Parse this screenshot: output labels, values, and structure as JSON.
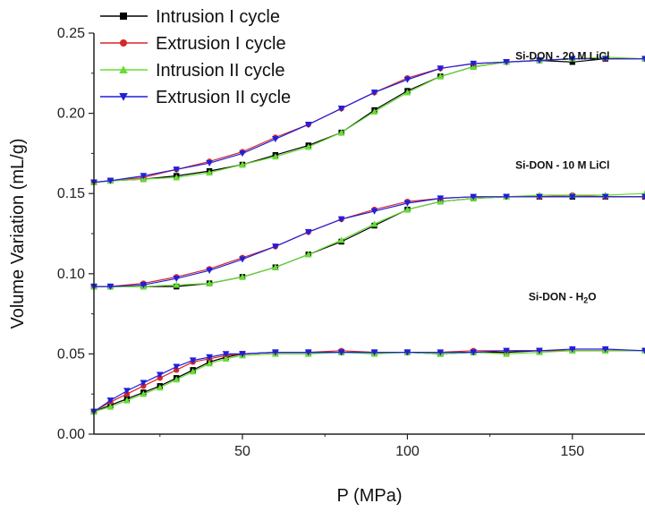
{
  "chart_data": {
    "type": "line",
    "xlabel": "P (MPa)",
    "ylabel": "Volume Variation (mL/g)",
    "xlim": [
      5,
      172
    ],
    "ylim": [
      0,
      0.25
    ],
    "xticks": [
      "50",
      "100",
      "150"
    ],
    "yticks": [
      "0.00",
      "0.05",
      "0.10",
      "0.15",
      "0.20",
      "0.25"
    ],
    "legend_position": "top-left",
    "legend": [
      {
        "name": "Intrusion I cycle",
        "color": "#000000",
        "marker": "square"
      },
      {
        "name": "Extrusion I cycle",
        "color": "#d62728",
        "marker": "circle"
      },
      {
        "name": "Intrusion II cycle",
        "color": "#66dd33",
        "marker": "triangle-up"
      },
      {
        "name": "Extrusion II cycle",
        "color": "#1f1fdd",
        "marker": "triangle-down"
      }
    ],
    "annotations": [
      {
        "text_before": "Si-DON - 20 M LiCl",
        "subscript": "",
        "text_after": "",
        "x": 147,
        "y": 0.2335
      },
      {
        "text_before": "Si-DON - 10 M LiCl",
        "subscript": "",
        "text_after": "",
        "x": 147,
        "y": 0.1655
      },
      {
        "text_before": "Si-DON - H",
        "subscript": "2",
        "text_after": "O",
        "x": 147,
        "y": 0.0835
      }
    ],
    "groups": [
      {
        "label": "Si-DON - 20 M LiCl",
        "series": [
          {
            "name": "Intrusion I cycle",
            "x": [
              5,
              10,
              20,
              30,
              40,
              50,
              60,
              70,
              80,
              90,
              100,
              110,
              120,
              130,
              140,
              150,
              160,
              172
            ],
            "y": [
              0.157,
              0.158,
              0.159,
              0.161,
              0.164,
              0.168,
              0.174,
              0.18,
              0.188,
              0.202,
              0.214,
              0.223,
              0.229,
              0.232,
              0.233,
              0.232,
              0.234,
              0.234
            ]
          },
          {
            "name": "Extrusion I cycle",
            "x": [
              5,
              10,
              20,
              30,
              40,
              50,
              60,
              70,
              80,
              90,
              100,
              110,
              120,
              130,
              140,
              150,
              160,
              172
            ],
            "y": [
              0.157,
              0.158,
              0.16,
              0.165,
              0.17,
              0.176,
              0.185,
              0.193,
              0.203,
              0.213,
              0.222,
              0.228,
              0.231,
              0.232,
              0.233,
              0.234,
              0.234,
              0.234
            ]
          },
          {
            "name": "Intrusion II cycle",
            "x": [
              5,
              10,
              20,
              30,
              40,
              50,
              60,
              70,
              80,
              90,
              100,
              110,
              120,
              130,
              140,
              150,
              160,
              172
            ],
            "y": [
              0.157,
              0.158,
              0.159,
              0.16,
              0.163,
              0.168,
              0.173,
              0.179,
              0.188,
              0.201,
              0.213,
              0.223,
              0.229,
              0.232,
              0.233,
              0.234,
              0.235,
              0.234
            ]
          },
          {
            "name": "Extrusion II cycle",
            "x": [
              5,
              10,
              20,
              30,
              40,
              50,
              60,
              70,
              80,
              90,
              100,
              110,
              120,
              130,
              140,
              150,
              160,
              172
            ],
            "y": [
              0.157,
              0.158,
              0.161,
              0.165,
              0.169,
              0.175,
              0.184,
              0.193,
              0.203,
              0.213,
              0.221,
              0.228,
              0.231,
              0.232,
              0.233,
              0.234,
              0.234,
              0.234
            ]
          }
        ]
      },
      {
        "label": "Si-DON - 10 M LiCl",
        "series": [
          {
            "name": "Intrusion I cycle",
            "x": [
              5,
              10,
              20,
              30,
              40,
              50,
              60,
              70,
              80,
              90,
              100,
              110,
              120,
              130,
              140,
              150,
              160,
              172
            ],
            "y": [
              0.092,
              0.092,
              0.092,
              0.092,
              0.094,
              0.098,
              0.104,
              0.112,
              0.12,
              0.13,
              0.14,
              0.145,
              0.147,
              0.148,
              0.148,
              0.148,
              0.148,
              0.148
            ]
          },
          {
            "name": "Extrusion I cycle",
            "x": [
              5,
              10,
              20,
              30,
              40,
              50,
              60,
              70,
              80,
              90,
              100,
              110,
              120,
              130,
              140,
              150,
              160,
              172
            ],
            "y": [
              0.092,
              0.092,
              0.094,
              0.098,
              0.103,
              0.11,
              0.117,
              0.126,
              0.134,
              0.14,
              0.145,
              0.147,
              0.148,
              0.148,
              0.148,
              0.149,
              0.148,
              0.148
            ]
          },
          {
            "name": "Intrusion II cycle",
            "x": [
              5,
              10,
              20,
              30,
              40,
              50,
              60,
              70,
              80,
              90,
              100,
              110,
              120,
              130,
              140,
              150,
              160,
              172
            ],
            "y": [
              0.092,
              0.092,
              0.092,
              0.093,
              0.094,
              0.098,
              0.104,
              0.112,
              0.121,
              0.131,
              0.14,
              0.145,
              0.147,
              0.148,
              0.149,
              0.149,
              0.149,
              0.15
            ]
          },
          {
            "name": "Extrusion II cycle",
            "x": [
              5,
              10,
              20,
              30,
              40,
              50,
              60,
              70,
              80,
              90,
              100,
              110,
              120,
              130,
              140,
              150,
              160,
              172
            ],
            "y": [
              0.092,
              0.092,
              0.093,
              0.097,
              0.102,
              0.109,
              0.117,
              0.126,
              0.134,
              0.139,
              0.144,
              0.147,
              0.148,
              0.148,
              0.148,
              0.148,
              0.148,
              0.148
            ]
          }
        ]
      },
      {
        "label": "Si-DON - H2O",
        "series": [
          {
            "name": "Intrusion I cycle",
            "x": [
              5,
              10,
              15,
              20,
              25,
              30,
              35,
              40,
              45,
              50,
              60,
              70,
              80,
              90,
              100,
              110,
              120,
              130,
              140,
              150,
              160,
              172
            ],
            "y": [
              0.014,
              0.018,
              0.022,
              0.026,
              0.03,
              0.035,
              0.04,
              0.045,
              0.048,
              0.05,
              0.051,
              0.051,
              0.051,
              0.051,
              0.051,
              0.05,
              0.051,
              0.051,
              0.052,
              0.052,
              0.052,
              0.052
            ]
          },
          {
            "name": "Extrusion I cycle",
            "x": [
              5,
              10,
              15,
              20,
              25,
              30,
              35,
              40,
              45,
              50,
              60,
              70,
              80,
              90,
              100,
              110,
              120,
              130,
              140,
              150,
              160,
              172
            ],
            "y": [
              0.014,
              0.02,
              0.025,
              0.03,
              0.035,
              0.04,
              0.045,
              0.047,
              0.049,
              0.05,
              0.051,
              0.051,
              0.052,
              0.051,
              0.051,
              0.051,
              0.052,
              0.052,
              0.052,
              0.052,
              0.052,
              0.052
            ]
          },
          {
            "name": "Intrusion II cycle",
            "x": [
              5,
              10,
              15,
              20,
              25,
              30,
              35,
              40,
              45,
              50,
              60,
              70,
              80,
              90,
              100,
              110,
              120,
              130,
              140,
              150,
              160,
              172
            ],
            "y": [
              0.014,
              0.017,
              0.021,
              0.025,
              0.029,
              0.034,
              0.039,
              0.044,
              0.047,
              0.049,
              0.05,
              0.05,
              0.051,
              0.05,
              0.051,
              0.05,
              0.051,
              0.05,
              0.051,
              0.052,
              0.052,
              0.052
            ]
          },
          {
            "name": "Extrusion II cycle",
            "x": [
              5,
              10,
              15,
              20,
              25,
              30,
              35,
              40,
              45,
              50,
              60,
              70,
              80,
              90,
              100,
              110,
              120,
              130,
              140,
              150,
              160,
              172
            ],
            "y": [
              0.014,
              0.021,
              0.027,
              0.032,
              0.037,
              0.042,
              0.046,
              0.048,
              0.05,
              0.05,
              0.051,
              0.051,
              0.051,
              0.051,
              0.051,
              0.051,
              0.051,
              0.052,
              0.052,
              0.053,
              0.053,
              0.052
            ]
          }
        ]
      }
    ]
  }
}
